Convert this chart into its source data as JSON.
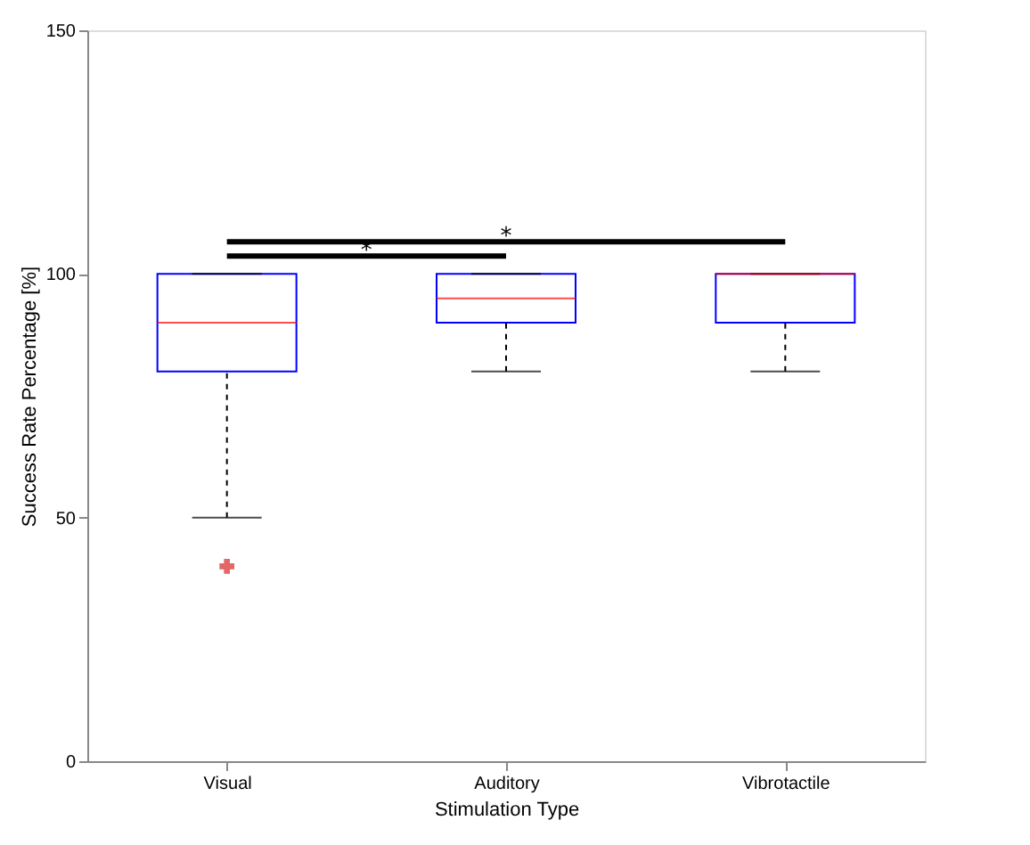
{
  "chart_data": {
    "type": "box",
    "xlabel": "Stimulation Type",
    "ylabel": "Success Rate Percentage [%]",
    "categories": [
      "Visual",
      "Auditory",
      "Vibrotactile"
    ],
    "boxes": [
      {
        "low": 50,
        "q1": 80,
        "median": 90,
        "q3": 100,
        "high": 100,
        "outliers": [
          40
        ]
      },
      {
        "low": 80,
        "q1": 90,
        "median": 95,
        "q3": 100,
        "high": 100
      },
      {
        "low": 80,
        "q1": 90,
        "median": 100,
        "q3": 100,
        "high": 100
      }
    ],
    "ylim": [
      0,
      150
    ],
    "yticks": [
      0,
      50,
      100,
      150
    ],
    "grid": false,
    "annotations": [
      "*",
      "*"
    ]
  }
}
